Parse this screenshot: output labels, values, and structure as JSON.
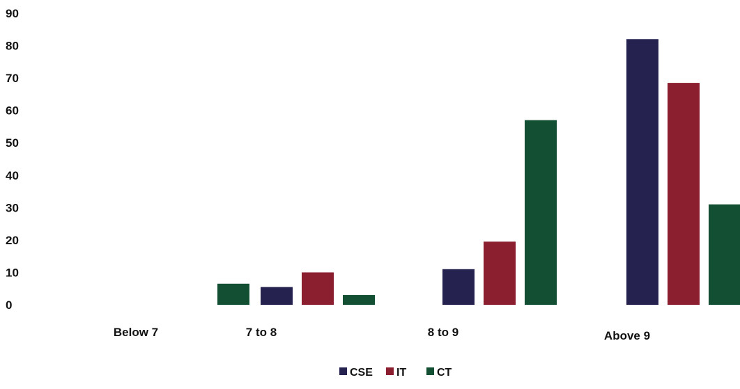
{
  "chart_data": {
    "type": "bar",
    "title": "",
    "xlabel": "",
    "ylabel": "",
    "categories": [
      "Below 7",
      "7 to 8",
      "8 to 9",
      "Above 9"
    ],
    "series": [
      {
        "name": "CSE",
        "color": "#26224f",
        "values": [
          0,
          5.5,
          11,
          82
        ]
      },
      {
        "name": "IT",
        "color": "#8c1f2f",
        "values": [
          0,
          10,
          19.5,
          68.5
        ]
      },
      {
        "name": "CT",
        "color": "#134f32",
        "values": [
          6.5,
          3,
          57,
          31
        ]
      }
    ],
    "ylim": [
      0,
      90
    ],
    "yticks": [
      "0",
      "10",
      "20",
      "30",
      "40",
      "50",
      "60",
      "70",
      "80",
      "90"
    ],
    "grid": false,
    "legend_position": "bottom"
  }
}
